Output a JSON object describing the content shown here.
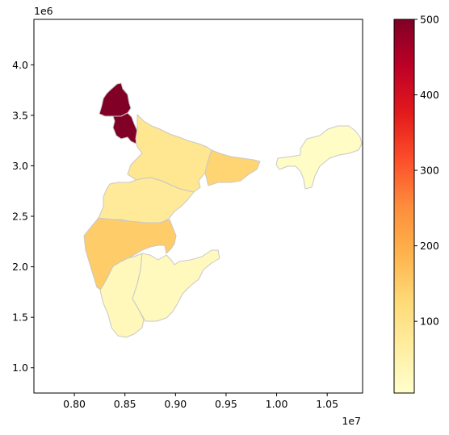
{
  "chart_data": {
    "type": "choropleth",
    "title": "",
    "xlabel": "",
    "ylabel": "",
    "x_offset_label": "1e7",
    "y_offset_label": "1e6",
    "xlim": [
      0.76,
      1.085
    ],
    "ylim": [
      0.75,
      4.45
    ],
    "x_ticks": [
      "0.80",
      "0.85",
      "0.90",
      "0.95",
      "1.00",
      "1.05"
    ],
    "y_ticks": [
      "1.0",
      "1.5",
      "2.0",
      "2.5",
      "3.0",
      "3.5",
      "4.0"
    ],
    "colorbar": {
      "colormap": "YlOrRd",
      "range": [
        5,
        500
      ],
      "ticks": [
        "100",
        "200",
        "300",
        "400",
        "500"
      ]
    },
    "regions": [
      {
        "id": "north-west-1",
        "value": 500
      },
      {
        "id": "north-west-2",
        "value": 500
      },
      {
        "id": "north-plain",
        "value": 90
      },
      {
        "id": "west-central",
        "value": 15
      },
      {
        "id": "east-central",
        "value": 135
      },
      {
        "id": "central",
        "value": 75
      },
      {
        "id": "west",
        "value": 150
      },
      {
        "id": "south-west",
        "value": 30
      },
      {
        "id": "south-east",
        "value": 25
      },
      {
        "id": "north-east",
        "value": 15
      }
    ]
  }
}
